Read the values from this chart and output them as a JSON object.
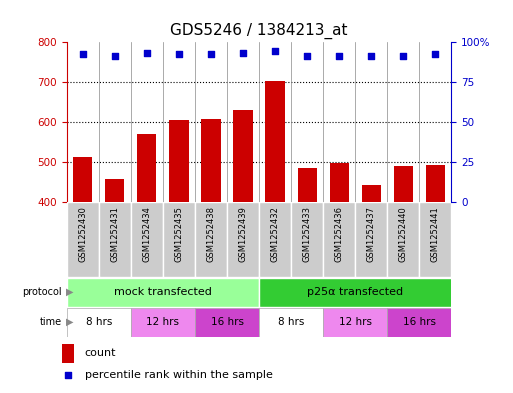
{
  "title": "GDS5246 / 1384213_at",
  "samples": [
    "GSM1252430",
    "GSM1252431",
    "GSM1252434",
    "GSM1252435",
    "GSM1252438",
    "GSM1252439",
    "GSM1252432",
    "GSM1252433",
    "GSM1252436",
    "GSM1252437",
    "GSM1252440",
    "GSM1252441"
  ],
  "bar_values": [
    513,
    458,
    570,
    605,
    608,
    630,
    703,
    485,
    498,
    443,
    490,
    492
  ],
  "percentile_values": [
    92,
    91,
    93,
    92,
    92,
    93,
    94,
    91,
    91,
    91,
    91,
    92
  ],
  "bar_color": "#cc0000",
  "dot_color": "#0000cc",
  "ylim_left": [
    400,
    800
  ],
  "ylim_right": [
    0,
    100
  ],
  "yticks_left": [
    400,
    500,
    600,
    700,
    800
  ],
  "yticks_right": [
    0,
    25,
    50,
    75,
    100
  ],
  "grid_values": [
    500,
    600,
    700
  ],
  "protocol_labels": [
    "mock transfected",
    "p25α transfected"
  ],
  "protocol_colors": [
    "#99ff99",
    "#33cc33"
  ],
  "time_labels": [
    "8 hrs",
    "12 hrs",
    "16 hrs",
    "8 hrs",
    "12 hrs",
    "16 hrs"
  ],
  "time_colors": [
    "#ffffff",
    "#ee88ee",
    "#cc44cc",
    "#ffffff",
    "#ee88ee",
    "#cc44cc"
  ],
  "time_ranges_samples": [
    [
      0,
      2
    ],
    [
      2,
      4
    ],
    [
      4,
      6
    ],
    [
      6,
      8
    ],
    [
      8,
      10
    ],
    [
      10,
      12
    ]
  ],
  "legend_count_label": "count",
  "legend_pct_label": "percentile rank within the sample",
  "bg_color": "#ffffff",
  "title_fontsize": 11,
  "sample_label_bg": "#cccccc",
  "label_color_left": "#cc0000",
  "label_color_right": "#0000cc",
  "tick_fontsize": 7.5,
  "sample_fontsize": 6.0
}
